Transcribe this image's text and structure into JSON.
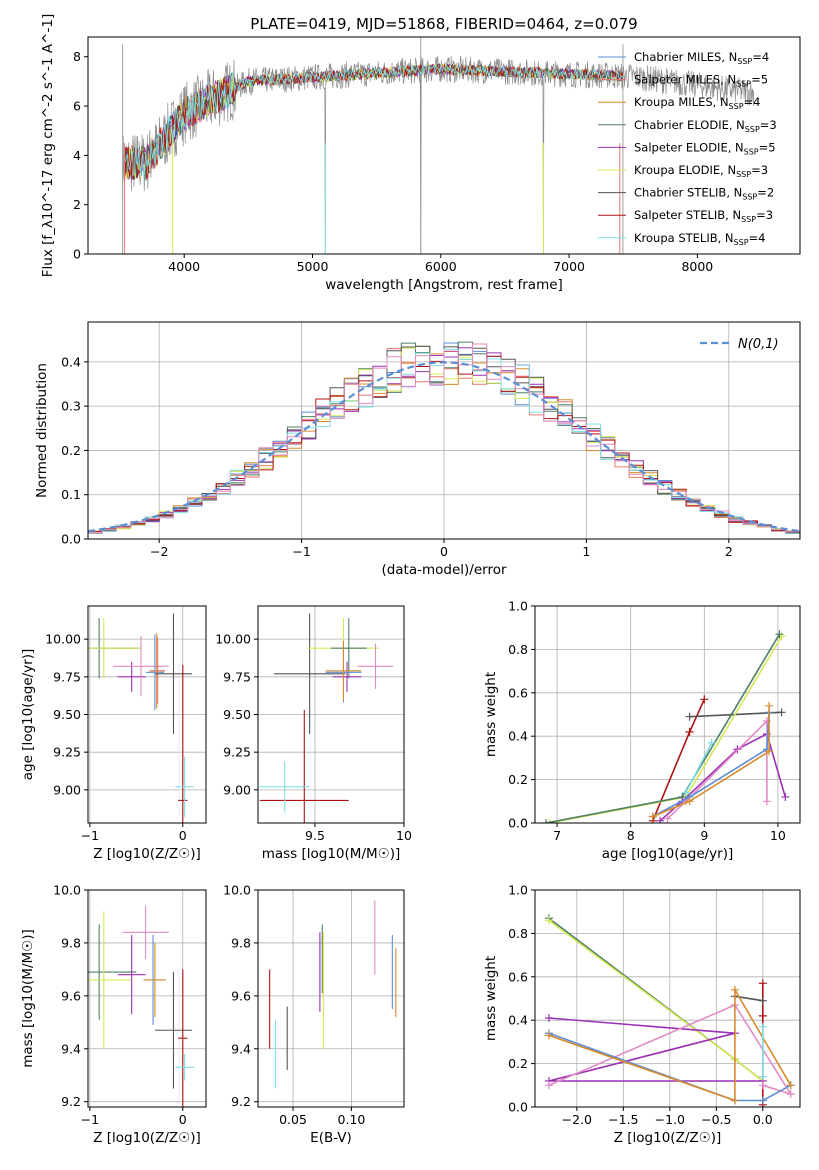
{
  "figure": {
    "title": "PLATE=0419, MJD=51868, FIBERID=0464, z=0.079"
  },
  "colors": {
    "chabrier_miles": "#5b8fd4",
    "salpeter_miles": "#e8796b",
    "kroupa_miles": "#d98a2c",
    "chabrier_elodie": "#4d7f66",
    "salpeter_elodie": "#9b30b5",
    "kroupa_elodie": "#d4e857",
    "chabrier_stelib": "#555555",
    "salpeter_stelib": "#b01212",
    "kroupa_stelib": "#80dfe3",
    "pink": "#e28bc4",
    "gray_spectrum": "#8c8c8c",
    "grid": "#b0b0b0"
  },
  "chart_data": [
    {
      "id": "spectrum",
      "type": "line",
      "xlabel": "wavelength [Angstrom, rest frame]",
      "ylabel": "Flux [f_λ10^-17 erg cm^-2 s^-1 A^-1]",
      "xlim": [
        3250,
        8800
      ],
      "ylim": [
        0,
        8.8
      ],
      "xticks": [
        4000,
        5000,
        6000,
        7000,
        8000
      ],
      "yticks": [
        0,
        2,
        4,
        6,
        8
      ],
      "grid": false,
      "legend_position": "right",
      "observed_segments": [
        [
          3520,
          7420
        ],
        [
          7420,
          8440
        ]
      ],
      "models": [
        {
          "label": "Chabrier MILES, N_SSP=4",
          "color_key": "chabrier_miles"
        },
        {
          "label": "Salpeter MILES, N_SSP=5",
          "color_key": "salpeter_miles"
        },
        {
          "label": "Kroupa MILES, N_SSP=4",
          "color_key": "kroupa_miles"
        },
        {
          "label": "Chabrier ELODIE, N_SSP=3",
          "color_key": "chabrier_elodie"
        },
        {
          "label": "Salpeter ELODIE, N_SSP=5",
          "color_key": "salpeter_elodie"
        },
        {
          "label": "Kroupa ELODIE, N_SSP=3",
          "color_key": "kroupa_elodie"
        },
        {
          "label": "Chabrier STELIB, N_SSP=2",
          "color_key": "chabrier_stelib"
        },
        {
          "label": "Salpeter STELIB, N_SSP=3",
          "color_key": "salpeter_stelib"
        },
        {
          "label": "Kroupa STELIB, N_SSP=4",
          "color_key": "kroupa_stelib"
        }
      ]
    },
    {
      "id": "residuals",
      "type": "line",
      "xlabel": "(data-model)/error",
      "ylabel": "Normed distribution",
      "xlim": [
        -2.5,
        2.5
      ],
      "ylim": [
        0,
        0.49
      ],
      "xticks": [
        -2,
        -1,
        0,
        1,
        2
      ],
      "yticks": [
        0.0,
        0.1,
        0.2,
        0.3,
        0.4
      ],
      "grid": true,
      "legend_position": "top-right",
      "legend_label": "N(0,1)",
      "bin_width": 0.1
    },
    {
      "id": "age_vs_Z",
      "type": "scatter",
      "xlabel": "Z [log10(Z/Z☉)]",
      "ylabel": "age  [log10(age/yr)]",
      "xlim": [
        -1.02,
        0.25
      ],
      "ylim": [
        8.78,
        10.22
      ],
      "xticks": [
        -1,
        0
      ],
      "yticks": [
        9.0,
        9.25,
        9.5,
        9.75,
        10.0
      ],
      "grid": true,
      "points": [
        {
          "x": -0.9,
          "y": 9.94,
          "xerr": 0.45,
          "yerr": 0.2,
          "color_key": "chabrier_elodie"
        },
        {
          "x": -0.85,
          "y": 9.94,
          "xerr": 0.4,
          "yerr": 0.2,
          "color_key": "kroupa_elodie"
        },
        {
          "x": -0.55,
          "y": 9.75,
          "xerr": 0.15,
          "yerr": 0.1,
          "color_key": "salpeter_elodie"
        },
        {
          "x": -0.45,
          "y": 9.82,
          "xerr": 0.3,
          "yerr": 0.2,
          "color_key": "pink"
        },
        {
          "x": -0.3,
          "y": 9.78,
          "xerr": 0.1,
          "yerr": 0.25,
          "color_key": "chabrier_miles"
        },
        {
          "x": -0.28,
          "y": 9.79,
          "xerr": 0.08,
          "yerr": 0.25,
          "color_key": "kroupa_miles"
        },
        {
          "x": -0.27,
          "y": 9.79,
          "xerr": 0.08,
          "yerr": 0.22,
          "color_key": "salpeter_miles"
        },
        {
          "x": -0.1,
          "y": 9.77,
          "xerr": 0.2,
          "yerr": 0.4,
          "color_key": "chabrier_stelib"
        },
        {
          "x": 0.0,
          "y": 8.93,
          "xerr": 0.05,
          "yerr": 0.9,
          "color_key": "salpeter_stelib"
        },
        {
          "x": 0.02,
          "y": 9.02,
          "xerr": 0.1,
          "yerr": 0.2,
          "color_key": "kroupa_stelib"
        }
      ]
    },
    {
      "id": "age_vs_mass",
      "type": "scatter",
      "xlabel": "mass [log10(M/M☉)]",
      "ylabel": "",
      "xlim": [
        9.18,
        10.0
      ],
      "ylim": [
        8.78,
        10.22
      ],
      "xticks": [
        9.5,
        10.0
      ],
      "yticks": [
        9.0,
        9.25,
        9.5,
        9.75,
        10.0
      ],
      "grid": true,
      "points": [
        {
          "x": 9.47,
          "y": 9.77,
          "xerr": 0.2,
          "yerr": 0.4,
          "color_key": "chabrier_stelib"
        },
        {
          "x": 9.44,
          "y": 8.93,
          "xerr": 0.25,
          "yerr": 0.6,
          "color_key": "salpeter_stelib"
        },
        {
          "x": 9.33,
          "y": 9.02,
          "xerr": 0.14,
          "yerr": 0.17,
          "color_key": "kroupa_stelib"
        },
        {
          "x": 9.66,
          "y": 9.94,
          "xerr": 0.2,
          "yerr": 0.2,
          "color_key": "kroupa_elodie"
        },
        {
          "x": 9.69,
          "y": 9.94,
          "xerr": 0.1,
          "yerr": 0.2,
          "color_key": "chabrier_elodie"
        },
        {
          "x": 9.68,
          "y": 9.75,
          "xerr": 0.08,
          "yerr": 0.1,
          "color_key": "salpeter_elodie"
        },
        {
          "x": 9.84,
          "y": 9.82,
          "xerr": 0.1,
          "yerr": 0.15,
          "color_key": "pink"
        },
        {
          "x": 9.66,
          "y": 9.78,
          "xerr": 0.1,
          "yerr": 0.2,
          "color_key": "chabrier_miles"
        },
        {
          "x": 9.66,
          "y": 9.79,
          "xerr": 0.1,
          "yerr": 0.2,
          "color_key": "kroupa_miles"
        }
      ]
    },
    {
      "id": "weight_vs_age",
      "type": "line",
      "xlabel": "age  [log10(age/yr)]",
      "ylabel": "mass weight",
      "xlim": [
        6.7,
        10.3
      ],
      "ylim": [
        0,
        1.0
      ],
      "xticks": [
        7,
        8,
        9,
        10
      ],
      "yticks": [
        0.0,
        0.2,
        0.4,
        0.6,
        0.8,
        1.0
      ],
      "grid": true,
      "series": [
        {
          "color_key": "salpeter_stelib",
          "x": [
            8.3,
            8.8,
            9.0
          ],
          "y": [
            0.01,
            0.42,
            0.57
          ]
        },
        {
          "color_key": "chabrier_stelib",
          "x": [
            8.8,
            10.05
          ],
          "y": [
            0.49,
            0.51
          ]
        },
        {
          "color_key": "kroupa_elodie",
          "x": [
            6.9,
            8.75,
            10.05
          ],
          "y": [
            0.0,
            0.12,
            0.86
          ]
        },
        {
          "color_key": "chabrier_elodie",
          "x": [
            6.85,
            8.7,
            10.02
          ],
          "y": [
            0.0,
            0.12,
            0.87
          ]
        },
        {
          "color_key": "salpeter_elodie",
          "x": [
            8.4,
            8.7,
            9.45,
            9.85,
            10.1
          ],
          "y": [
            0.01,
            0.1,
            0.34,
            0.41,
            0.12
          ]
        },
        {
          "color_key": "pink",
          "x": [
            8.5,
            8.75,
            9.85,
            9.85
          ],
          "y": [
            0.02,
            0.1,
            0.47,
            0.1
          ]
        },
        {
          "color_key": "chabrier_miles",
          "x": [
            8.3,
            8.8,
            9.85,
            9.88
          ],
          "y": [
            0.03,
            0.12,
            0.34,
            0.51
          ]
        },
        {
          "color_key": "kroupa_miles",
          "x": [
            8.3,
            8.8,
            9.88,
            9.88
          ],
          "y": [
            0.03,
            0.1,
            0.33,
            0.54
          ]
        },
        {
          "color_key": "kroupa_stelib",
          "x": [
            8.75,
            9.1
          ],
          "y": [
            0.14,
            0.37
          ]
        }
      ]
    },
    {
      "id": "mass_vs_Z",
      "type": "scatter",
      "xlabel": "Z [log10(Z/Z☉)]",
      "ylabel": "mass [log10(M/M☉)]",
      "xlim": [
        -1.02,
        0.25
      ],
      "ylim": [
        9.18,
        10.0
      ],
      "xticks": [
        -1,
        0
      ],
      "yticks": [
        9.2,
        9.4,
        9.6,
        9.8,
        10.0
      ],
      "grid": true,
      "points": [
        {
          "x": -0.9,
          "y": 9.69,
          "xerr": 0.4,
          "yerr": 0.18,
          "color_key": "chabrier_elodie"
        },
        {
          "x": -0.85,
          "y": 9.66,
          "xerr": 0.3,
          "yerr": 0.26,
          "color_key": "kroupa_elodie"
        },
        {
          "x": -0.55,
          "y": 9.68,
          "xerr": 0.15,
          "yerr": 0.15,
          "color_key": "salpeter_elodie"
        },
        {
          "x": -0.4,
          "y": 9.84,
          "xerr": 0.25,
          "yerr": 0.1,
          "color_key": "pink"
        },
        {
          "x": -0.32,
          "y": 9.66,
          "xerr": 0.1,
          "yerr": 0.17,
          "color_key": "chabrier_miles"
        },
        {
          "x": -0.3,
          "y": 9.66,
          "xerr": 0.12,
          "yerr": 0.14,
          "color_key": "kroupa_miles"
        },
        {
          "x": -0.1,
          "y": 9.47,
          "xerr": 0.2,
          "yerr": 0.22,
          "color_key": "chabrier_stelib"
        },
        {
          "x": 0.0,
          "y": 9.44,
          "xerr": 0.05,
          "yerr": 0.26,
          "color_key": "salpeter_stelib"
        },
        {
          "x": 0.02,
          "y": 9.33,
          "xerr": 0.1,
          "yerr": 0.05,
          "color_key": "kroupa_stelib"
        }
      ]
    },
    {
      "id": "mass_vs_ebv",
      "type": "scatter",
      "xlabel": "E(B-V)",
      "ylabel": "",
      "xlim": [
        0.02,
        0.145
      ],
      "ylim": [
        9.18,
        10.0
      ],
      "xticks": [
        0.05,
        0.1
      ],
      "tick_labels": [
        "0.05",
        "0.10"
      ],
      "yticks": [
        9.2,
        9.4,
        9.6,
        9.8,
        10.0
      ],
      "grid": true,
      "points": [
        {
          "x": 0.03,
          "y": 9.55,
          "yerr": 0.15,
          "color_key": "salpeter_stelib"
        },
        {
          "x": 0.035,
          "y": 9.38,
          "yerr": 0.13,
          "color_key": "kroupa_stelib"
        },
        {
          "x": 0.045,
          "y": 9.44,
          "yerr": 0.12,
          "color_key": "chabrier_stelib"
        },
        {
          "x": 0.073,
          "y": 9.69,
          "yerr": 0.15,
          "color_key": "salpeter_elodie"
        },
        {
          "x": 0.075,
          "y": 9.74,
          "yerr": 0.13,
          "color_key": "chabrier_elodie"
        },
        {
          "x": 0.076,
          "y": 9.62,
          "yerr": 0.22,
          "color_key": "kroupa_elodie"
        },
        {
          "x": 0.12,
          "y": 9.82,
          "yerr": 0.14,
          "color_key": "pink"
        },
        {
          "x": 0.135,
          "y": 9.69,
          "yerr": 0.14,
          "color_key": "chabrier_miles"
        },
        {
          "x": 0.138,
          "y": 9.65,
          "yerr": 0.13,
          "color_key": "kroupa_miles"
        }
      ]
    },
    {
      "id": "weight_vs_Z",
      "type": "line",
      "xlabel": "Z [log10(Z/Z☉)]",
      "ylabel": "mass weight",
      "xlim": [
        -2.45,
        0.4
      ],
      "ylim": [
        0,
        1.0
      ],
      "xticks": [
        -2.0,
        -1.5,
        -1.0,
        -0.5,
        0.0
      ],
      "tick_labels": [
        "−2.0",
        "−1.5",
        "−1.0",
        "−0.5",
        "0.0"
      ],
      "yticks": [
        0.0,
        0.2,
        0.4,
        0.6,
        0.8,
        1.0
      ],
      "grid": true,
      "series": [
        {
          "color_key": "salpeter_stelib",
          "x": [
            0.0,
            0.0,
            0.0
          ],
          "y": [
            0.57,
            0.42,
            0.01
          ]
        },
        {
          "color_key": "chabrier_stelib",
          "x": [
            -0.3,
            0.0
          ],
          "y": [
            0.51,
            0.49
          ]
        },
        {
          "color_key": "chabrier_elodie",
          "x": [
            -2.3,
            -0.3,
            0.0
          ],
          "y": [
            0.87,
            0.22,
            0.12
          ]
        },
        {
          "color_key": "kroupa_elodie",
          "x": [
            -2.3,
            -0.3,
            0.0
          ],
          "y": [
            0.86,
            0.22,
            0.12
          ]
        },
        {
          "color_key": "salpeter_elodie",
          "x": [
            -2.3,
            -0.3,
            -2.3,
            0.0
          ],
          "y": [
            0.41,
            0.34,
            0.12,
            0.12
          ]
        },
        {
          "color_key": "pink",
          "x": [
            -2.3,
            -0.3,
            0.3,
            0.0
          ],
          "y": [
            0.1,
            0.47,
            0.06,
            0.1
          ]
        },
        {
          "color_key": "chabrier_miles",
          "x": [
            -2.3,
            -0.3,
            0.0,
            0.3
          ],
          "y": [
            0.34,
            0.03,
            0.03,
            0.1
          ]
        },
        {
          "color_key": "kroupa_miles",
          "x": [
            -2.3,
            -0.3,
            -0.3,
            0.3
          ],
          "y": [
            0.33,
            0.03,
            0.54,
            0.1
          ]
        },
        {
          "color_key": "kroupa_stelib",
          "x": [
            0.0,
            0.0
          ],
          "y": [
            0.14,
            0.37
          ]
        }
      ]
    }
  ]
}
